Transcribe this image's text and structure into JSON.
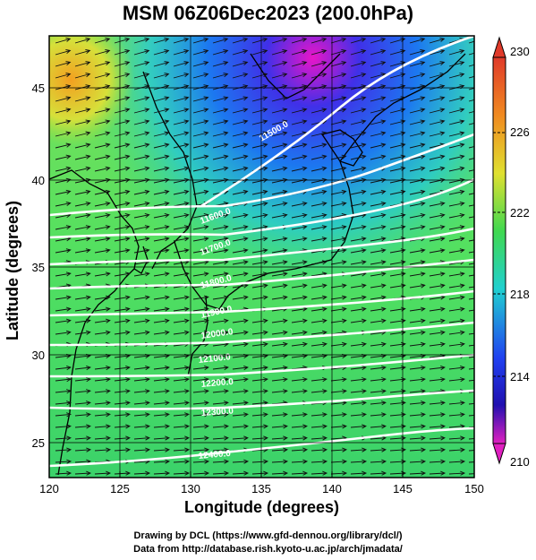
{
  "title": "MSM 06Z06Dec2023 (200.0hPa)",
  "axes": {
    "xlabel": "Longitude (degrees)",
    "ylabel": "Latitude  (degrees)",
    "xticks": [
      "120",
      "125",
      "130",
      "135",
      "140",
      "145",
      "150"
    ],
    "yticks": [
      "25",
      "30",
      "35",
      "40",
      "45"
    ]
  },
  "colorbar": {
    "labels": [
      "230",
      "226",
      "222",
      "218",
      "214",
      "210"
    ],
    "min": 210,
    "max": 230
  },
  "contours": {
    "labels": [
      "11500.0",
      "11600.0",
      "11700.0",
      "11800.0",
      "11900.0",
      "12000.0",
      "12100.0",
      "12200.0",
      "12300.0",
      "12400.0"
    ]
  },
  "credits": {
    "line1": "Drawing by DCL (https://www.gfd-dennou.org/library/dcl/)",
    "line2": "Data from http://database.rish.kyoto-u.ac.jp/arch/jmadata/"
  },
  "chart_data": {
    "type": "heatmap",
    "title": "MSM 06Z06Dec2023 (200.0hPa)",
    "xlabel": "Longitude (degrees)",
    "ylabel": "Latitude  (degrees)",
    "xlim": [
      120,
      150
    ],
    "ylim": [
      22.4,
      47.6
    ],
    "color_range": [
      210,
      230
    ],
    "overlays": [
      "geopotential height contours (white)",
      "wind vectors (black arrows)",
      "coastlines"
    ],
    "colors": {
      "high": "#e8402a",
      "mid": "#46d85a",
      "low": "#1030e0",
      "lowest": "#e010c0",
      "contour": "#ffffff"
    }
  }
}
